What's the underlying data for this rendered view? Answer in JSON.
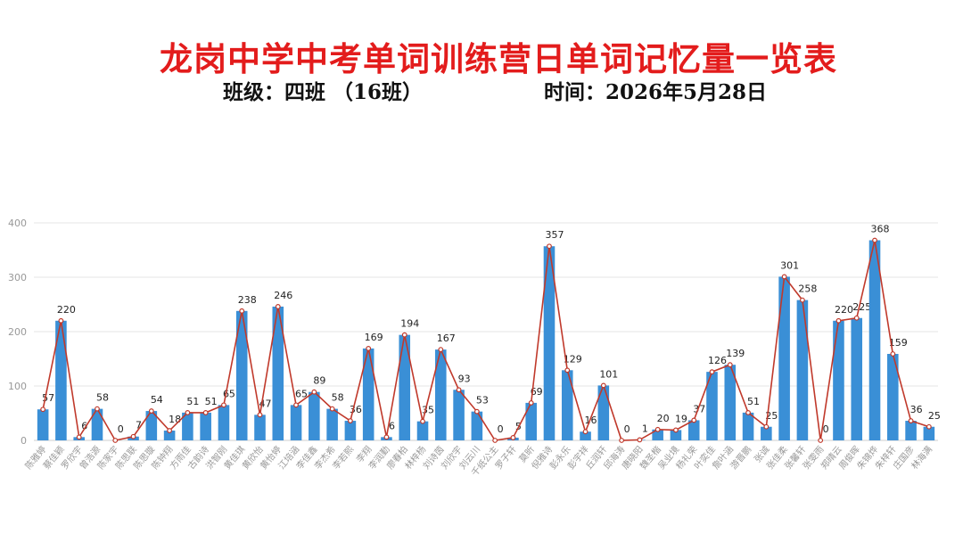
{
  "header": {
    "title": "龙岗中学中考单词训练营日单词记忆量一览表",
    "class_label": "班级：四班 （16班）",
    "date_label": "时间：2026年5月28日"
  },
  "colors": {
    "title": "#e31c1c",
    "bar": "#3a8fd6",
    "line": "#c0392b",
    "grid": "#e6e6e6",
    "tick_text": "#999999"
  },
  "chart_data": {
    "type": "bar",
    "overlay": "line",
    "ylim": [
      0,
      400
    ],
    "yticks": [
      0,
      100,
      200,
      300,
      400
    ],
    "grid": true,
    "categories": [
      "陈雅婷",
      "蔡佳颖",
      "罗欣宇",
      "曾浩源",
      "陈家宇",
      "陈思联",
      "陈思璇",
      "陈钟翔",
      "方雨佳",
      "古韵诗",
      "洪智刚",
      "黄佳琪",
      "黄欣怡",
      "黄怡婷",
      "江培涵",
      "李佳鑫",
      "李杰希",
      "李若熙",
      "李翔",
      "李润勤",
      "廖春柏",
      "林梓杨",
      "刘诗茵",
      "刘欣宇",
      "刘云川",
      "千纸公主",
      "罗子轩",
      "莫昕",
      "倪雅诗",
      "彭永乐",
      "彭宇祥",
      "丘润轩",
      "邱海涛",
      "唐晓阳",
      "魏圣楷",
      "吴业境",
      "杨礼荣",
      "叶奕佳",
      "詹叶涵",
      "游晋鹏",
      "张诚",
      "张佳柔",
      "张馨轩",
      "张雯雨",
      "郑晴云",
      "周俊晖",
      "朱锦烨",
      "朱梓轩",
      "庄国彦",
      "林海满"
    ],
    "values": [
      57,
      220,
      6,
      58,
      0,
      7,
      54,
      18,
      51,
      51,
      65,
      238,
      47,
      246,
      65,
      89,
      58,
      36,
      169,
      6,
      194,
      35,
      167,
      93,
      53,
      0,
      5,
      69,
      357,
      129,
      16,
      101,
      0,
      1,
      20,
      19,
      37,
      126,
      139,
      51,
      25,
      301,
      258,
      0,
      220,
      225,
      368,
      159,
      36,
      25
    ]
  }
}
